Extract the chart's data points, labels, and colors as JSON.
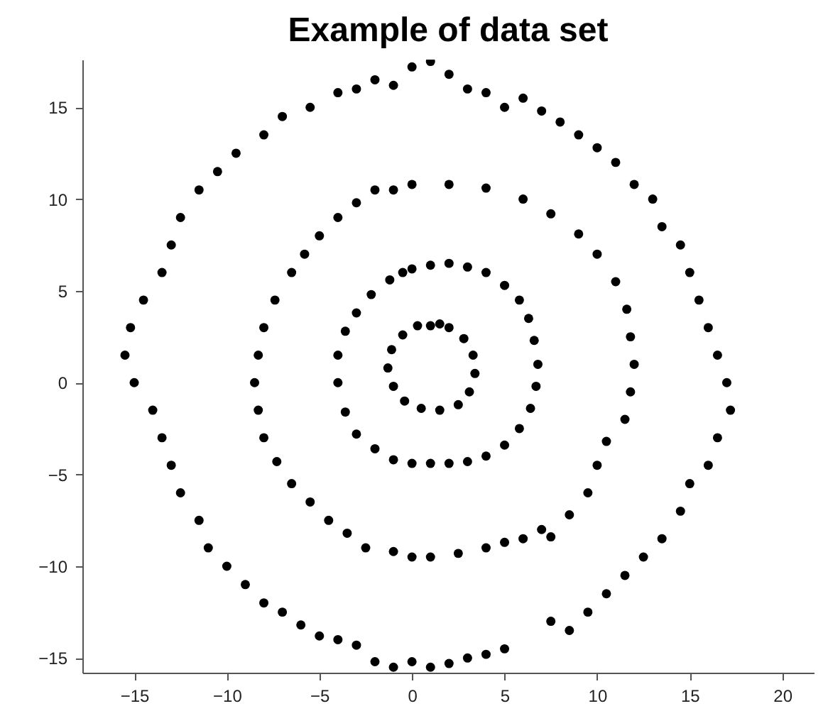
{
  "chart_data": {
    "type": "scatter",
    "title": "Example of data set",
    "marker": "circle",
    "grid": false,
    "legend": false,
    "xlim": [
      -17.8,
      21.7
    ],
    "ylim": [
      -15.8,
      17.6
    ],
    "xticks": [
      -15,
      -10,
      -5,
      0,
      5,
      10,
      15,
      20
    ],
    "yticks": [
      -15,
      -10,
      -5,
      0,
      5,
      10,
      15
    ],
    "series": [
      {
        "color": "#000000",
        "x": [
          1,
          2,
          2.8,
          3.3,
          3.4,
          3.1,
          2.5,
          1.5,
          0.5,
          -0.4,
          -1,
          -1.3,
          -1.1,
          -0.5,
          0.3,
          1.5,
          0,
          1,
          2,
          3,
          4,
          5,
          5.8,
          6.3,
          6.6,
          6.8,
          6.7,
          6.4,
          5.8,
          5,
          4,
          3,
          2,
          1,
          0,
          -1,
          -2,
          -3,
          -3.6,
          -4,
          -4,
          -3.6,
          -3,
          -2.2,
          -1.2,
          -0.5,
          -2,
          0,
          2,
          4,
          6,
          7.5,
          9,
          10,
          11,
          11.6,
          11.8,
          12,
          11.8,
          11.5,
          10.5,
          10,
          9.5,
          8.5,
          7,
          6,
          5,
          4,
          2.5,
          1,
          0,
          -1,
          -2.5,
          -3.5,
          -4.5,
          -5.5,
          -6.5,
          -7.3,
          -8,
          -8.3,
          -8.5,
          -8.3,
          -8,
          -7.4,
          -6.5,
          -5.8,
          -5,
          -4,
          -3,
          -1,
          7.5,
          -2,
          -1,
          0,
          1,
          2,
          3,
          4,
          5,
          6,
          7,
          8,
          9,
          10,
          11,
          12,
          13,
          13.5,
          14.5,
          15,
          15.5,
          16,
          16.5,
          17,
          17.2,
          16.5,
          16,
          15,
          14.5,
          13.5,
          12.5,
          11.5,
          10.5,
          9.5,
          8.5,
          7.5,
          5,
          4,
          3,
          2,
          1,
          0,
          -1,
          -2,
          -3,
          -4,
          -5,
          -6,
          -7,
          -8,
          -9,
          -10,
          -11,
          -11.5,
          -12.5,
          -13,
          -13.5,
          -14,
          -15,
          -15.5,
          -15.2,
          -14.5,
          -13.5,
          -13,
          -12.5,
          -11.5,
          -10.5,
          -9.5,
          -8,
          -7,
          -5.5,
          -4,
          -3
        ],
        "values": [
          3.1,
          3,
          2.4,
          1.5,
          0.5,
          -0.5,
          -1.2,
          -1.5,
          -1.4,
          -1,
          -0.2,
          0.8,
          1.8,
          2.6,
          3.1,
          3.2,
          6.2,
          6.4,
          6.5,
          6.3,
          6,
          5.3,
          4.5,
          3.5,
          2.3,
          1,
          -0.2,
          -1.4,
          -2.5,
          -3.4,
          -4,
          -4.3,
          -4.4,
          -4.4,
          -4.4,
          -4.2,
          -3.6,
          -2.8,
          -1.6,
          0,
          1.5,
          2.8,
          3.8,
          4.8,
          5.6,
          6,
          10.5,
          10.8,
          10.8,
          10.6,
          10,
          9.2,
          8.1,
          7,
          5.5,
          4,
          2.5,
          1,
          -0.5,
          -2,
          -3.2,
          -4.5,
          -6,
          -7.2,
          -8,
          -8.5,
          -8.7,
          -9,
          -9.3,
          -9.5,
          -9.5,
          -9.2,
          -9,
          -8.2,
          -7.5,
          -6.5,
          -5.5,
          -4.3,
          -3,
          -1.5,
          0,
          1.5,
          3,
          4.5,
          6,
          7,
          8,
          9,
          9.8,
          10.5,
          -8.4,
          16.5,
          16.2,
          17.2,
          17.5,
          16.8,
          16,
          15.8,
          15,
          15.5,
          14.8,
          14.2,
          13.5,
          12.8,
          12,
          10.8,
          10,
          8.5,
          7.5,
          6,
          4.5,
          3,
          1.5,
          0,
          -1.5,
          -3,
          -4.5,
          -5.5,
          -7,
          -8.5,
          -9.5,
          -10.5,
          -11.5,
          -12.5,
          -13.5,
          -13,
          -14.5,
          -14.8,
          -15,
          -15.3,
          -15.5,
          -15.2,
          -15.5,
          -15.2,
          -14.3,
          -14,
          -13.8,
          -13.2,
          -12.5,
          -12,
          -11,
          -10,
          -9,
          -7.5,
          -6,
          -4.5,
          -3,
          -1.5,
          0,
          1.5,
          3,
          4.5,
          6,
          7.5,
          9,
          10.5,
          11.5,
          12.5,
          13.5,
          14.5,
          15,
          15.8,
          16
        ]
      }
    ]
  }
}
